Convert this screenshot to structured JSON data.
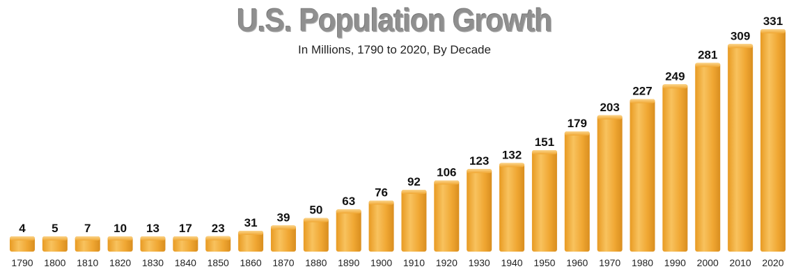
{
  "chart_data": {
    "type": "bar",
    "title": "U.S. Population Growth",
    "subtitle": "In Millions, 1790 to 2020, By Decade",
    "xlabel": "",
    "ylabel": "",
    "categories": [
      "1790",
      "1800",
      "1810",
      "1820",
      "1830",
      "1840",
      "1850",
      "1860",
      "1870",
      "1880",
      "1890",
      "1900",
      "1910",
      "1920",
      "1930",
      "1940",
      "1950",
      "1960",
      "1970",
      "1980",
      "1990",
      "2000",
      "2010",
      "2020"
    ],
    "values": [
      4,
      5,
      7,
      10,
      13,
      17,
      23,
      31,
      39,
      50,
      63,
      76,
      92,
      106,
      123,
      132,
      151,
      179,
      203,
      227,
      249,
      281,
      309,
      331
    ],
    "ylim": [
      0,
      331
    ],
    "grid": false,
    "legend": "none",
    "bar_color": "#f0a733",
    "bar_highlight_color": "#f8c56a",
    "bar_shadow_color": "#d98e1f",
    "title_color": "#8f8f8f"
  }
}
